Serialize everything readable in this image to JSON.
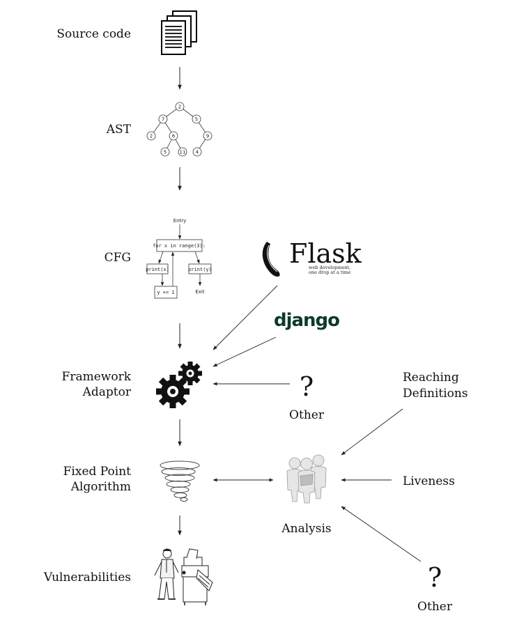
{
  "pipeline": {
    "source_code": "Source code",
    "ast": "AST",
    "cfg": "CFG",
    "framework_adaptor_line1": "Framework",
    "framework_adaptor_line2": "Adaptor",
    "fixed_point_line1": "Fixed Point",
    "fixed_point_line2": "Algorithm",
    "vulnerabilities": "Vulnerabilities"
  },
  "frameworks": {
    "flask_name": "Flask",
    "flask_tagline_1": "web development,",
    "flask_tagline_2": "one drop at a time",
    "django_name": "django",
    "other_symbol": "?",
    "other_label": "Other"
  },
  "analysis": {
    "label": "Analysis",
    "reaching_line1": "Reaching",
    "reaching_line2": "Definitions",
    "liveness": "Liveness",
    "other_symbol": "?",
    "other_label": "Other"
  },
  "ast_tree": {
    "nodes": [
      "2",
      "7",
      "5",
      "2",
      "6",
      "9",
      "5",
      "11",
      "4"
    ]
  },
  "cfg_graph": {
    "entry": "Entry",
    "loop": "for x in range(3):",
    "print_x": "print(x)",
    "print_y": "print(y)",
    "assign": "y += 1",
    "exit": "Exit"
  }
}
